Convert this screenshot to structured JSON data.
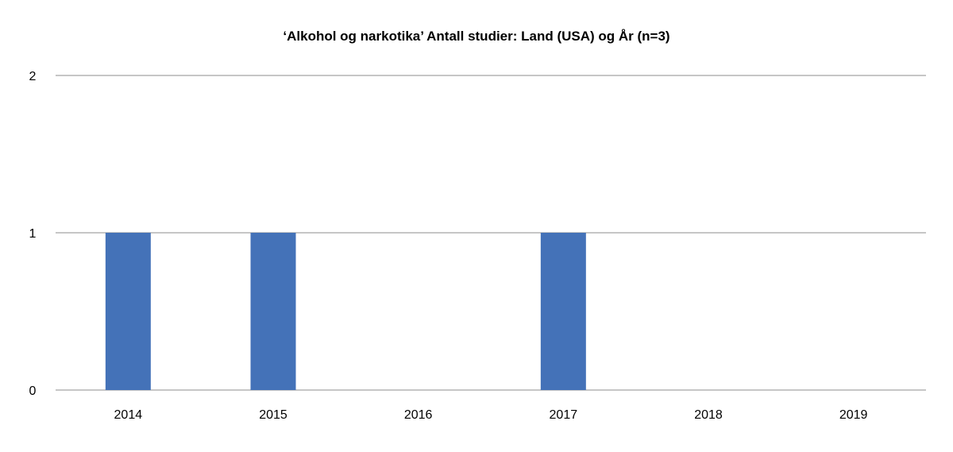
{
  "chart_data": {
    "type": "bar",
    "title": "‘Alkohol og narkotika’ Antall studier: Land (USA) og År (n=3)",
    "categories": [
      "2014",
      "2015",
      "2016",
      "2017",
      "2018",
      "2019"
    ],
    "values": [
      1,
      1,
      0,
      1,
      0,
      0
    ],
    "ylim": [
      0,
      2
    ],
    "yticks": [
      0,
      1,
      2
    ],
    "grid": true,
    "legend": "none",
    "bar_color": "#4472b8"
  }
}
